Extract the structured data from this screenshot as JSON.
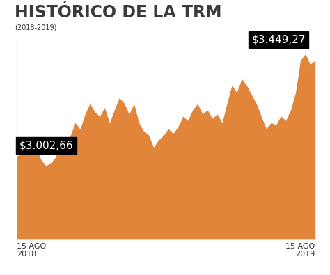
{
  "chart_data": {
    "type": "area",
    "title": "HISTÓRICO DE LA TRM",
    "subtitle": "(2018-2019)",
    "categories": [
      "15 AGO\n2018",
      null,
      null,
      null,
      null,
      null,
      null,
      null,
      null,
      null,
      null,
      null,
      null,
      null,
      null,
      null,
      null,
      null,
      null,
      null,
      null,
      null,
      null,
      null,
      null,
      null,
      null,
      null,
      null,
      null,
      null,
      null,
      null,
      null,
      null,
      null,
      null,
      null,
      null,
      null,
      null,
      null,
      null,
      null,
      null,
      null,
      null,
      null,
      null,
      null,
      null,
      null,
      null,
      null,
      null,
      null,
      null,
      null,
      null,
      null,
      null,
      "15 AGO\n2019"
    ],
    "values": [
      3002.66,
      3020,
      3060,
      3010,
      3040,
      2990,
      2960,
      2975,
      3000,
      3075,
      3050,
      3100,
      3160,
      3130,
      3200,
      3248,
      3210,
      3190,
      3230,
      3160,
      3220,
      3276,
      3250,
      3200,
      3248,
      3160,
      3120,
      3103,
      3046,
      3080,
      3100,
      3132,
      3110,
      3140,
      3190,
      3170,
      3220,
      3248,
      3200,
      3219,
      3180,
      3200,
      3160,
      3250,
      3334,
      3300,
      3363,
      3334,
      3290,
      3248,
      3190,
      3132,
      3160,
      3150,
      3190,
      3170,
      3219,
      3300,
      3449,
      3478,
      3430,
      3449.27
    ],
    "annotations": [
      "$3.002,66",
      "$3.449,27"
    ],
    "color": "#e0853a",
    "ylim": [
      2620,
      3550
    ],
    "yticks": [],
    "grid": false,
    "tick_labels": "x"
  }
}
